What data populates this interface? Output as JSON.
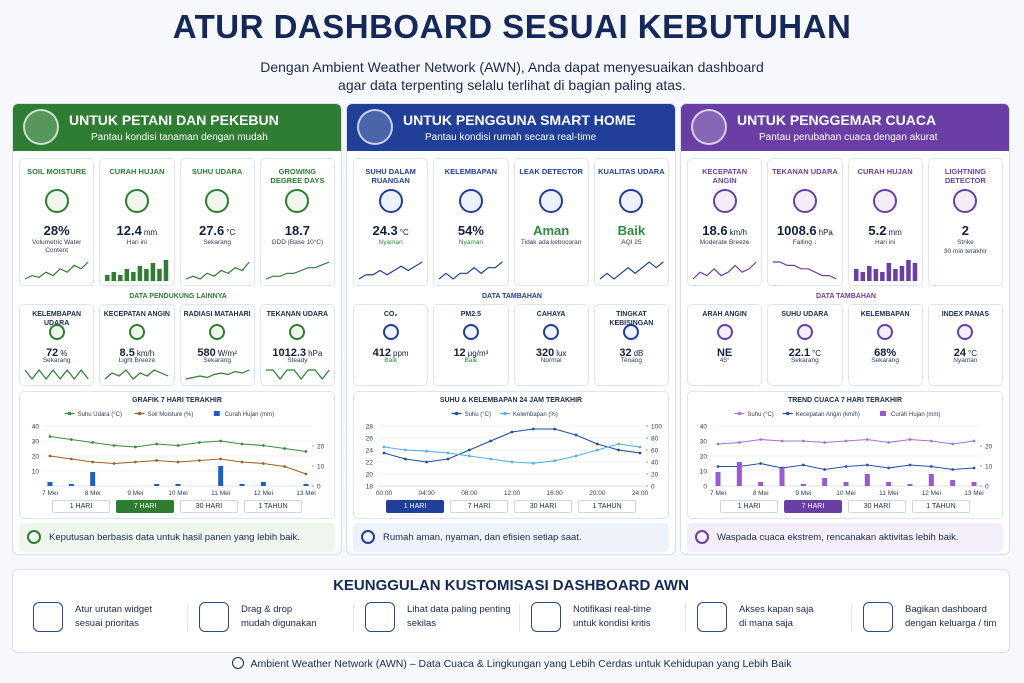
{
  "header": {
    "title": "ATUR DASHBOARD SESUAI KEBUTUHAN",
    "subtitle_lines": [
      "Dengan Ambient Weather Network (AWN), Anda dapat menyesuaikan dashboard",
      "agar data terpenting selalu terlihat di bagian paling atas."
    ]
  },
  "panels": [
    {
      "title": "UNTUK PETANI DAN PEKEBUN",
      "subtitle": "Pantau kondisi tanaman dengan mudah",
      "color": "#2e7d32",
      "light": "#eef6ee",
      "cards": [
        {
          "title": "SOIL MOISTURE",
          "value": "28%",
          "note": "Volumetric Water Content",
          "spark": {
            "kind": "line",
            "values": [
              3,
              4,
              3.5,
              5,
              4,
              6,
              5,
              7,
              6,
              8
            ]
          }
        },
        {
          "title": "CURAH HUJAN",
          "value": "12.4",
          "unit": "mm",
          "note": "Hari ini",
          "spark": {
            "kind": "bar",
            "values": [
              1,
              2,
              1,
              3,
              2,
              4,
              3,
              5,
              3,
              6
            ]
          }
        },
        {
          "title": "SUHU UDARA",
          "value": "27.6",
          "unit": "°C",
          "note": "Sekarang",
          "spark": {
            "kind": "line",
            "values": [
              3,
              4,
              3,
              5,
              4,
              6,
              5,
              7,
              6,
              9
            ]
          }
        },
        {
          "title": "GROWING DEGREE DAYS",
          "value": "18.7",
          "note": "GDD (Base 10°C)",
          "spark": {
            "kind": "line",
            "values": [
              2,
              3,
              3,
              4,
              4,
              5,
              6,
              6,
              7,
              8
            ]
          }
        }
      ],
      "extras_title": "DATA PENDUKUNG LAINNYA",
      "extras": [
        {
          "title": "KELEMBAPAN UDARA",
          "value": "72",
          "unit": "%",
          "note": "Sekarang",
          "spark": {
            "kind": "line",
            "values": [
              5,
              4,
              5,
              4,
              5,
              4,
              5,
              4,
              5,
              4
            ]
          }
        },
        {
          "title": "KECEPATAN ANGIN",
          "value": "8.5",
          "unit": "km/h",
          "note": "Light Breeze",
          "spark": {
            "kind": "line",
            "values": [
              3,
              5,
              4,
              6,
              3,
              5,
              4,
              6,
              5,
              4
            ]
          }
        },
        {
          "title": "RADIASI MATAHARI",
          "value": "580",
          "unit": "W/m²",
          "note": "Sekarang",
          "spark": {
            "kind": "line",
            "values": [
              2,
              3,
              4,
              3,
              5,
              6,
              5,
              7,
              6,
              8
            ]
          }
        },
        {
          "title": "TEKANAN UDARA",
          "value": "1012.3",
          "unit": "hPa",
          "note": "Steady",
          "spark": {
            "kind": "line",
            "values": [
              5,
              5,
              4,
              5,
              5,
              4,
              5,
              5,
              4,
              5
            ]
          }
        }
      ],
      "chart": {
        "type": "line",
        "title": "GRAFIK 7 HARI TERAKHIR",
        "categories": [
          "7 Mei",
          null,
          "8 Mei",
          null,
          "9 Mei",
          null,
          "10 Mei",
          null,
          "11 Mei",
          null,
          "12 Mei",
          null,
          "13 Mei"
        ],
        "ylim": [
          0,
          40
        ],
        "yticks": [
          10,
          20,
          30,
          40
        ],
        "y2lim": [
          0,
          30
        ],
        "y2ticks": [
          0,
          10,
          20
        ],
        "series": [
          {
            "name": "Suhu Udara (°C)",
            "color": "#3d8b3d",
            "kind": "line",
            "values": [
              33,
              31,
              29,
              27,
              26,
              28,
              27,
              29,
              30,
              28,
              27,
              25,
              23
            ]
          },
          {
            "name": "Soil Moisture (%)",
            "color": "#a0612d",
            "kind": "line",
            "values": [
              20,
              18,
              16,
              15,
              16,
              17,
              16,
              17,
              18,
              16,
              15,
              13,
              8
            ]
          },
          {
            "name": "Curah Hujan (mm)",
            "color": "#1f5fbf",
            "kind": "bar",
            "axis": "y2",
            "values": [
              2,
              1,
              7,
              0,
              0,
              1,
              1,
              0,
              10,
              1,
              2,
              0,
              1
            ]
          }
        ]
      },
      "buttons": [
        "1 HARI",
        "7 HARI",
        "30 HARI",
        "1 TAHUN"
      ],
      "active_button": 1,
      "note": "Keputusan berbasis data untuk hasil panen yang lebih baik."
    },
    {
      "title": "UNTUK PENGGUNA SMART HOME",
      "subtitle": "Pantau kondisi rumah secara real-time",
      "color": "#1f3f99",
      "light": "#eef2fa",
      "cards": [
        {
          "title": "SUHU DALAM RUANGAN",
          "value": "24.3",
          "unit": "°C",
          "note": "Nyaman",
          "note_color": "#2e8b3e",
          "spark": {
            "kind": "line",
            "values": [
              3,
              4,
              4,
              5,
              4,
              5,
              6,
              5,
              6,
              7
            ]
          }
        },
        {
          "title": "KELEMBAPAN",
          "value": "54%",
          "note": "Nyaman",
          "note_color": "#2e8b3e",
          "spark": {
            "kind": "line",
            "values": [
              4,
              5,
              4,
              5,
              5,
              6,
              5,
              6,
              6,
              7
            ]
          }
        },
        {
          "title": "LEAK DETECTOR",
          "value": "Aman",
          "value_color": "#2e8b3e",
          "note": "Tidak ada kebocoran"
        },
        {
          "title": "KUALITAS UDARA",
          "value": "Baik",
          "value_color": "#2e8b3e",
          "note": "AQI 25",
          "spark": {
            "kind": "line",
            "values": [
              3,
              4,
              3,
              4,
              5,
              4,
              5,
              6,
              5,
              6
            ]
          }
        }
      ],
      "extras_title": "DATA TAMBAHAN",
      "extras": [
        {
          "title": "CO₂",
          "value": "412",
          "unit": "ppm",
          "note": "Baik",
          "note_color": "#2e8b3e"
        },
        {
          "title": "PM2.5",
          "value": "12",
          "unit": "μg/m³",
          "note": "Baik",
          "note_color": "#2e8b3e"
        },
        {
          "title": "CAHAYA",
          "value": "320",
          "unit": "lux",
          "note": "Normal"
        },
        {
          "title": "TINGKAT KEBISINGAN",
          "value": "32",
          "unit": "dB",
          "note": "Tenang"
        }
      ],
      "chart": {
        "type": "line",
        "title": "SUHU & KELEMBAPAN 24 JAM TERAKHIR",
        "categories": [
          "00:00",
          null,
          "04:00",
          null,
          "08:00",
          null,
          "12:00",
          null,
          "16:00",
          null,
          "20:00",
          null,
          "24:00"
        ],
        "ylim": [
          18,
          28
        ],
        "yticks": [
          18,
          20,
          22,
          24,
          26,
          28
        ],
        "y2lim": [
          0,
          100
        ],
        "y2ticks": [
          0,
          20,
          40,
          60,
          80,
          100
        ],
        "series": [
          {
            "name": "Suhu (°C)",
            "color": "#1e4fa0",
            "kind": "line",
            "values": [
              23.5,
              22.5,
              22,
              22.5,
              24,
              25.5,
              27,
              27.5,
              27.5,
              26.5,
              25,
              24,
              23.5
            ]
          },
          {
            "name": "Kelembapan (%)",
            "color": "#5aaee0",
            "kind": "line",
            "axis": "y2",
            "values": [
              65,
              60,
              58,
              55,
              50,
              45,
              40,
              38,
              42,
              50,
              60,
              70,
              65
            ]
          }
        ]
      },
      "buttons": [
        "1 HARI",
        "7 HARI",
        "30 HARI",
        "1 TAHUN"
      ],
      "active_button": 0,
      "note": "Rumah aman, nyaman, dan efisien setiap saat."
    },
    {
      "title": "UNTUK PENGGEMAR CUACA",
      "subtitle": "Pantau perubahan cuaca dengan akurat",
      "color": "#6a3fa5",
      "light": "#f4eefa",
      "cards": [
        {
          "title": "KECEPATAN ANGIN",
          "value": "18.6",
          "unit": "km/h",
          "note": "Moderate Breeze",
          "spark": {
            "kind": "line",
            "values": [
              3,
              5,
              4,
              6,
              4,
              5,
              7,
              5,
              6,
              8
            ]
          }
        },
        {
          "title": "TEKANAN UDARA",
          "value": "1008.6",
          "unit": "hPa",
          "note": "Falling ↓",
          "spark": {
            "kind": "line",
            "values": [
              8,
              8,
              7,
              7,
              6,
              6,
              5,
              4,
              4,
              3
            ]
          }
        },
        {
          "title": "CURAH HUJAN",
          "value": "5.2",
          "unit": "mm",
          "note": "Hari ini",
          "spark": {
            "kind": "bar",
            "values": [
              3,
              2,
              4,
              3,
              2,
              5,
              3,
              4,
              6,
              5
            ]
          }
        },
        {
          "title": "LIGHTNING DETECTOR",
          "value": "2",
          "note": "Strike",
          "note2": "30 min terakhir"
        }
      ],
      "extras_title": "DATA TAMBAHAN",
      "extras": [
        {
          "title": "ARAH ANGIN",
          "value": "NE",
          "note": "45°"
        },
        {
          "title": "SUHU UDARA",
          "value": "22.1",
          "unit": "°C",
          "note": "Sekarang"
        },
        {
          "title": "KELEMBAPAN",
          "value": "68%",
          "note": "Sekarang"
        },
        {
          "title": "INDEX PANAS",
          "value": "24",
          "unit": "°C",
          "note": "Nyaman"
        }
      ],
      "chart": {
        "type": "line",
        "title": "TREND CUACA 7 HARI TERAKHIR",
        "categories": [
          "7 Mei",
          null,
          "8 Mei",
          null,
          "9 Mei",
          null,
          "10 Mei",
          null,
          "11 Mei",
          null,
          "12 Mei",
          null,
          "13 Mei"
        ],
        "ylim": [
          0,
          40
        ],
        "yticks": [
          0,
          10,
          20,
          30,
          40
        ],
        "y2lim": [
          0,
          30
        ],
        "y2ticks": [
          0,
          10,
          20
        ],
        "series": [
          {
            "name": "Suhu (°C)",
            "color": "#a678d0",
            "kind": "line",
            "values": [
              28,
              29,
              31,
              30,
              30,
              29,
              30,
              31,
              29,
              31,
              30,
              28,
              30
            ]
          },
          {
            "name": "Kecepatan Angin (km/h)",
            "color": "#2f4fa8",
            "kind": "line",
            "values": [
              13,
              13,
              15,
              12,
              14,
              11,
              13,
              14,
              12,
              14,
              13,
              11,
              12
            ]
          },
          {
            "name": "Curah Hujan (mm)",
            "color": "#9b59d0",
            "kind": "bar",
            "axis": "y2",
            "values": [
              7,
              12,
              2,
              9,
              1,
              4,
              2,
              6,
              2,
              1,
              6,
              3,
              2
            ]
          }
        ]
      },
      "buttons": [
        "1 HARI",
        "7 HARI",
        "30 HARI",
        "1 TAHUN"
      ],
      "active_button": 1,
      "note": "Waspada cuaca ekstrem, rencanakan aktivitas lebih baik."
    }
  ],
  "benefits": {
    "title": "KEUNGGULAN KUSTOMISASI DASHBOARD AWN",
    "items": [
      [
        "Atur urutan widget",
        "sesuai prioritas"
      ],
      [
        "Drag & drop",
        "mudah digunakan"
      ],
      [
        "Lihat data paling penting",
        "sekilas"
      ],
      [
        "Notifikasi real-time",
        "untuk kondisi kritis"
      ],
      [
        "Akses kapan saja",
        "di mana saja"
      ],
      [
        "Bagikan dashboard",
        "dengan keluarga / tim"
      ]
    ]
  },
  "footer": "Ambient Weather Network (AWN) – Data Cuaca & Lingkungan yang Lebih Cerdas untuk Kehidupan yang Lebih Baik"
}
